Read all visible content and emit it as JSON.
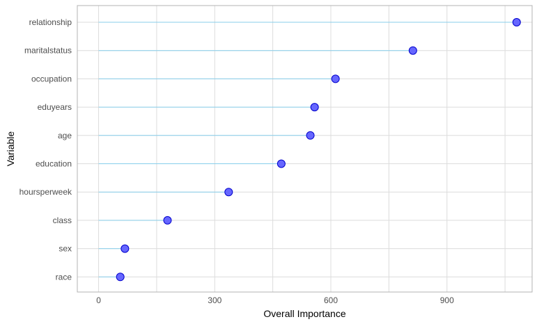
{
  "chart_data": {
    "type": "scatter",
    "subtype": "lollipop",
    "title": "",
    "xlabel": "Overall Importance",
    "ylabel": "Variable",
    "xlim": [
      -55,
      1120
    ],
    "xticks": [
      0,
      300,
      600,
      900
    ],
    "xtick_labels": [
      "0",
      "300",
      "600",
      "900"
    ],
    "grid": true,
    "legend": "none",
    "categories": [
      "relationship",
      "maritalstatus",
      "occupation",
      "eduyears",
      "age",
      "education",
      "hoursperweek",
      "class",
      "sex",
      "race"
    ],
    "values": [
      1080,
      812,
      612,
      558,
      547,
      472,
      336,
      178,
      68,
      56
    ]
  },
  "colors": {
    "point_fill": "#6666ff",
    "point_stroke": "#0000cc",
    "segment": "#87ceeb",
    "grid": "#dcdcdc",
    "panel_border": "#b3b3b3",
    "tick_text": "#4d4d4d",
    "title_text": "#000000"
  }
}
